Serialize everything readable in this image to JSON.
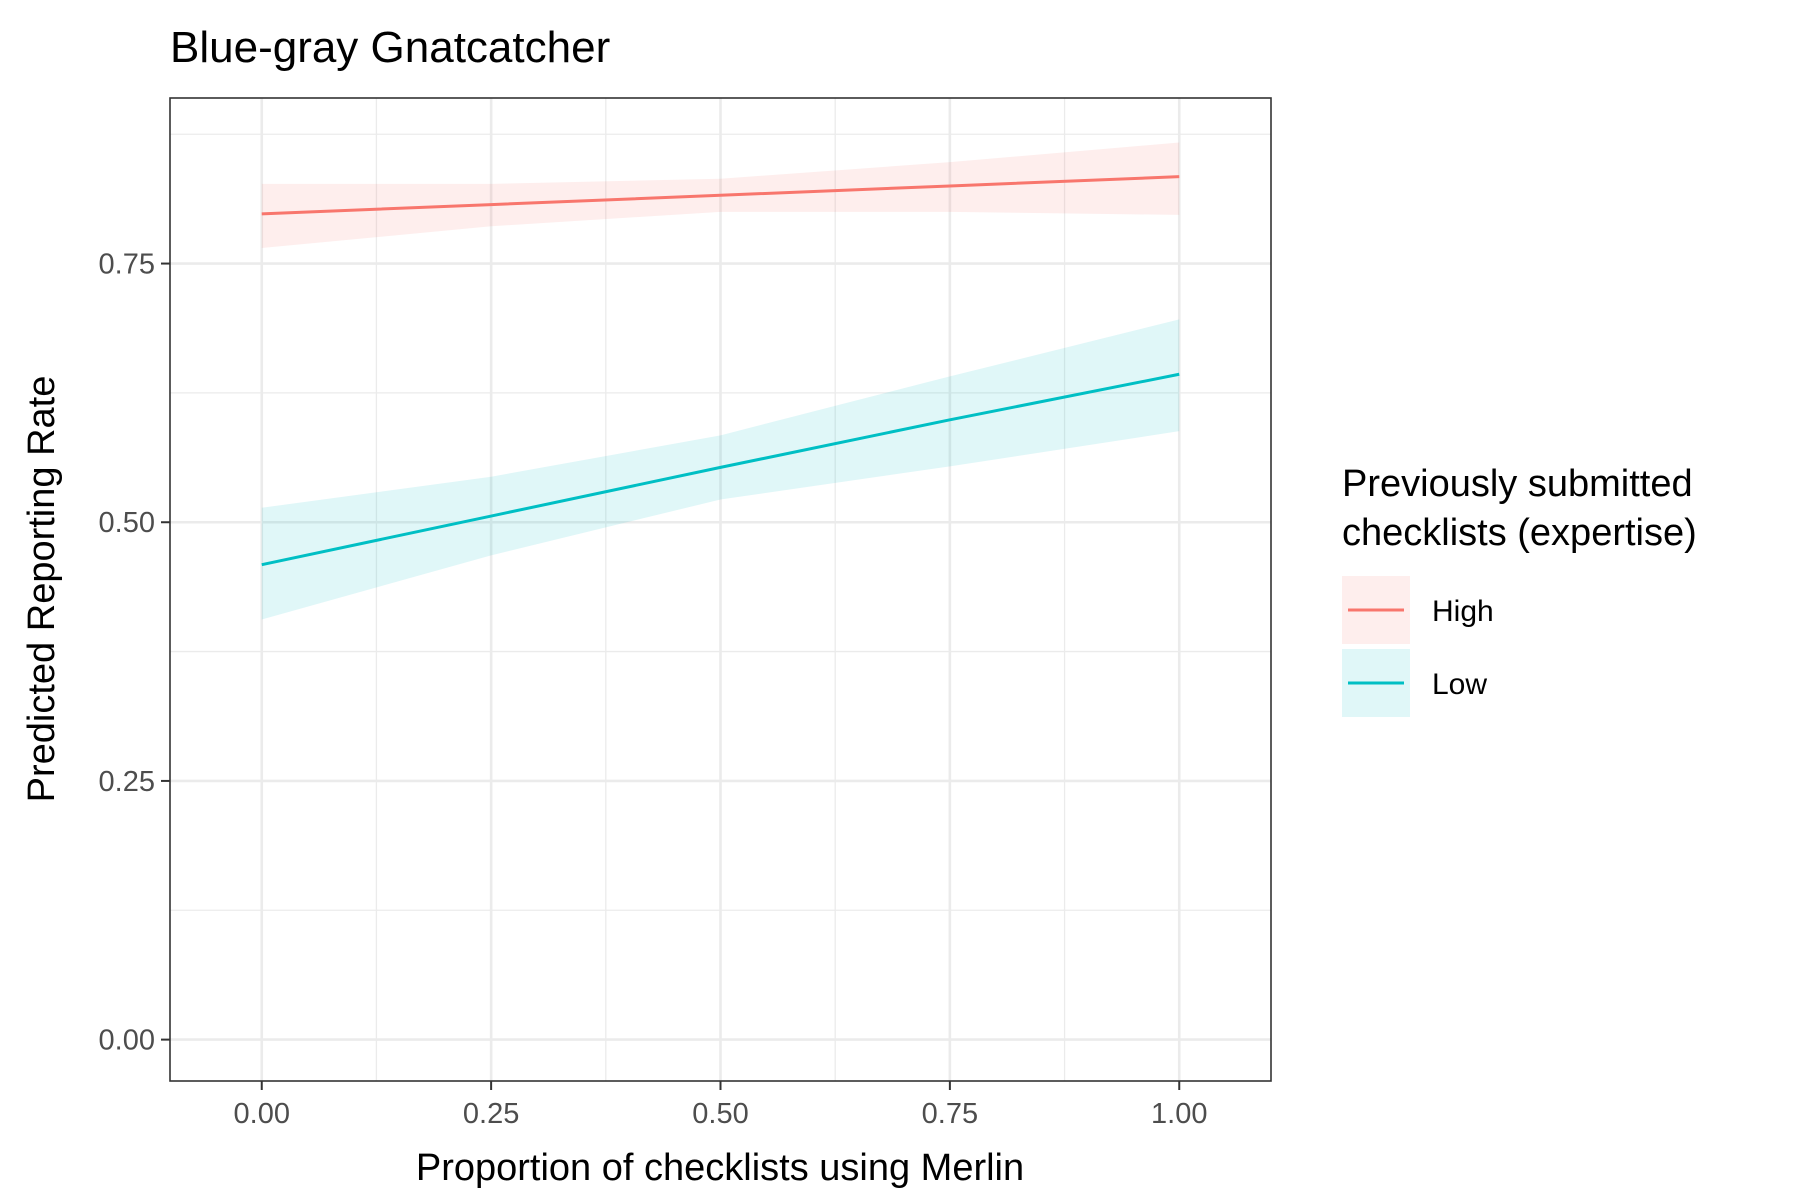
{
  "chart_data": {
    "type": "line",
    "title": "Blue-gray Gnatcatcher",
    "xlabel": "Proportion of checklists using Merlin",
    "ylabel": "Predicted Reporting Rate",
    "xlim": [
      -0.1,
      1.1
    ],
    "ylim": [
      -0.04,
      0.91
    ],
    "x_ticks": [
      0,
      0.25,
      0.5,
      0.75,
      1
    ],
    "x_tick_labels": [
      "0.00",
      "0.25",
      "0.50",
      "0.75",
      "1.00"
    ],
    "y_ticks": [
      0,
      0.25,
      0.5,
      0.75
    ],
    "y_tick_labels": [
      "0.00",
      "0.25",
      "0.50",
      "0.75"
    ],
    "grid": true,
    "legend_position": "right",
    "legend_title_lines": [
      "Previously submitted",
      "checklists (expertise)"
    ],
    "series": [
      {
        "name": "High",
        "color": "#F8766D",
        "x": [
          0,
          0.25,
          0.5,
          0.75,
          1
        ],
        "y": [
          0.798,
          0.807,
          0.816,
          0.825,
          0.834
        ],
        "ci_lower": [
          0.765,
          0.786,
          0.8,
          0.8,
          0.797
        ],
        "ci_upper": [
          0.827,
          0.827,
          0.832,
          0.848,
          0.867
        ]
      },
      {
        "name": "Low",
        "color": "#00BFC4",
        "x": [
          0,
          0.25,
          0.5,
          0.75,
          1
        ],
        "y": [
          0.459,
          0.506,
          0.553,
          0.599,
          0.643
        ],
        "ci_lower": [
          0.406,
          0.468,
          0.522,
          0.554,
          0.588
        ],
        "ci_upper": [
          0.514,
          0.544,
          0.584,
          0.641,
          0.696
        ]
      }
    ]
  }
}
